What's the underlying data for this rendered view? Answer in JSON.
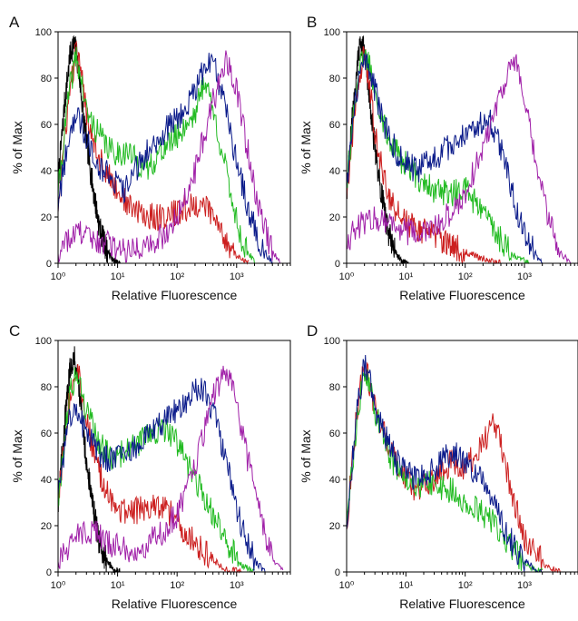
{
  "colors": {
    "black": "#000000",
    "red": "#cc1f1f",
    "green": "#22bb22",
    "blue": "#0a1a8a",
    "purple": "#a020a8"
  },
  "chart_data": [
    {
      "type": "line",
      "panel_label": "A",
      "xlabel": "Relative Fluorescence",
      "ylabel": "% of Max",
      "xscale": "log",
      "xlim": [
        1,
        8000
      ],
      "ylim": [
        0,
        100
      ],
      "x_ticks": [
        "10⁰",
        "10¹",
        "10²",
        "10³"
      ],
      "y_ticks": [
        "0",
        "20",
        "40",
        "60",
        "80",
        "100"
      ],
      "series": [
        {
          "color": "black",
          "x": [
            1,
            1.3,
            1.6,
            1.8,
            2,
            2.3,
            2.7,
            3.3,
            4,
            5,
            6.5,
            8.5,
            11
          ],
          "y": [
            35,
            70,
            90,
            95,
            92,
            80,
            62,
            45,
            30,
            15,
            6,
            1,
            0
          ]
        },
        {
          "color": "red",
          "x": [
            1,
            1.5,
            2,
            2.5,
            3,
            5,
            8,
            15,
            30,
            60,
            100,
            200,
            300,
            400,
            600,
            1000,
            1600
          ],
          "y": [
            25,
            70,
            92,
            80,
            65,
            45,
            35,
            25,
            20,
            20,
            22,
            25,
            25,
            20,
            12,
            3,
            0
          ]
        },
        {
          "color": "green",
          "x": [
            1,
            1.5,
            2,
            2.5,
            3,
            5,
            8,
            15,
            30,
            60,
            100,
            200,
            300,
            500,
            800,
            1200,
            2000
          ],
          "y": [
            30,
            72,
            90,
            78,
            65,
            55,
            48,
            48,
            40,
            50,
            55,
            65,
            80,
            55,
            30,
            10,
            0
          ]
        },
        {
          "color": "blue",
          "x": [
            1,
            1.5,
            2,
            3,
            5,
            8,
            12,
            20,
            40,
            80,
            150,
            300,
            400,
            600,
            900,
            1500,
            2500,
            4000
          ],
          "y": [
            25,
            55,
            65,
            55,
            42,
            38,
            30,
            40,
            52,
            60,
            68,
            85,
            88,
            70,
            50,
            25,
            8,
            0
          ]
        },
        {
          "color": "purple",
          "x": [
            1,
            2,
            4,
            8,
            15,
            30,
            60,
            100,
            200,
            400,
            700,
            1000,
            1500,
            2500,
            4000,
            5500
          ],
          "y": [
            5,
            14,
            10,
            8,
            6,
            8,
            12,
            20,
            40,
            70,
            88,
            75,
            50,
            20,
            5,
            0
          ]
        }
      ]
    },
    {
      "type": "line",
      "panel_label": "B",
      "xlabel": "Relative Fluorescence",
      "ylabel": "% of Max",
      "xscale": "log",
      "xlim": [
        1,
        8000
      ],
      "ylim": [
        0,
        100
      ],
      "x_ticks": [
        "10⁰",
        "10¹",
        "10²",
        "10³"
      ],
      "y_ticks": [
        "0",
        "20",
        "40",
        "60",
        "80",
        "100"
      ],
      "series": [
        {
          "color": "black",
          "x": [
            1,
            1.3,
            1.6,
            1.8,
            2,
            2.3,
            2.7,
            3.3,
            4,
            5,
            6.5,
            8.5,
            11
          ],
          "y": [
            30,
            70,
            92,
            95,
            90,
            78,
            60,
            42,
            28,
            14,
            5,
            1,
            0
          ]
        },
        {
          "color": "red",
          "x": [
            1,
            1.5,
            2,
            2.5,
            3,
            5,
            8,
            15,
            30,
            60,
            100,
            200,
            400
          ],
          "y": [
            30,
            75,
            92,
            75,
            55,
            30,
            20,
            15,
            12,
            8,
            5,
            2,
            0
          ]
        },
        {
          "color": "green",
          "x": [
            1,
            1.5,
            2,
            2.5,
            3,
            5,
            8,
            15,
            30,
            60,
            100,
            200,
            400,
            700,
            1200
          ],
          "y": [
            35,
            80,
            90,
            85,
            75,
            55,
            45,
            38,
            32,
            30,
            32,
            22,
            10,
            3,
            0
          ]
        },
        {
          "color": "blue",
          "x": [
            1,
            1.5,
            2,
            3,
            5,
            8,
            15,
            30,
            60,
            120,
            250,
            400,
            700,
            1200,
            2000
          ],
          "y": [
            35,
            75,
            90,
            75,
            55,
            45,
            40,
            45,
            52,
            58,
            62,
            50,
            25,
            8,
            0
          ]
        },
        {
          "color": "purple",
          "x": [
            1,
            2,
            4,
            8,
            15,
            30,
            60,
            100,
            200,
            400,
            700,
            1000,
            1500,
            2500,
            4000,
            6000
          ],
          "y": [
            10,
            18,
            20,
            15,
            12,
            15,
            22,
            30,
            50,
            75,
            88,
            70,
            45,
            20,
            5,
            0
          ]
        }
      ]
    },
    {
      "type": "line",
      "panel_label": "C",
      "xlabel": "Relative Fluorescence",
      "ylabel": "% of Max",
      "xscale": "log",
      "xlim": [
        1,
        8000
      ],
      "ylim": [
        0,
        100
      ],
      "x_ticks": [
        "10⁰",
        "10¹",
        "10²",
        "10³"
      ],
      "y_ticks": [
        "0",
        "20",
        "40",
        "60",
        "80",
        "100"
      ],
      "series": [
        {
          "color": "black",
          "x": [
            1,
            1.3,
            1.6,
            1.8,
            2,
            2.3,
            2.7,
            3.3,
            4,
            5,
            6.5,
            8.5,
            11
          ],
          "y": [
            30,
            65,
            88,
            93,
            90,
            78,
            58,
            40,
            26,
            12,
            5,
            1,
            0
          ]
        },
        {
          "color": "red",
          "x": [
            1,
            1.5,
            2,
            2.5,
            3,
            5,
            8,
            15,
            30,
            60,
            100,
            200,
            400,
            700,
            1200
          ],
          "y": [
            30,
            72,
            88,
            80,
            65,
            42,
            30,
            25,
            28,
            28,
            22,
            12,
            5,
            1,
            0
          ]
        },
        {
          "color": "green",
          "x": [
            1,
            1.5,
            2,
            3,
            5,
            8,
            15,
            30,
            60,
            100,
            200,
            400,
            700,
            1200,
            2000
          ],
          "y": [
            30,
            75,
            85,
            70,
            55,
            50,
            52,
            58,
            62,
            55,
            40,
            25,
            12,
            3,
            0
          ]
        },
        {
          "color": "blue",
          "x": [
            1,
            1.5,
            2,
            3,
            5,
            8,
            15,
            30,
            60,
            120,
            250,
            400,
            700,
            1200,
            2000,
            3000
          ],
          "y": [
            35,
            65,
            70,
            60,
            50,
            48,
            50,
            58,
            65,
            72,
            80,
            70,
            45,
            20,
            5,
            0
          ]
        },
        {
          "color": "purple",
          "x": [
            1,
            2,
            4,
            8,
            15,
            30,
            60,
            100,
            200,
            400,
            700,
            1000,
            1500,
            2500,
            4000,
            6000
          ],
          "y": [
            5,
            15,
            18,
            12,
            10,
            12,
            18,
            25,
            45,
            75,
            88,
            72,
            50,
            25,
            5,
            0
          ]
        }
      ]
    },
    {
      "type": "line",
      "panel_label": "D",
      "xlabel": "Relative Fluorescence",
      "ylabel": "% of Max",
      "xscale": "log",
      "xlim": [
        1,
        8000
      ],
      "ylim": [
        0,
        100
      ],
      "x_ticks": [
        "10⁰",
        "10¹",
        "10²",
        "10³"
      ],
      "y_ticks": [
        "0",
        "20",
        "40",
        "60",
        "80",
        "100"
      ],
      "series": [
        {
          "color": "red",
          "x": [
            1,
            1.5,
            2,
            2.5,
            3,
            5,
            8,
            15,
            30,
            60,
            100,
            200,
            300,
            400,
            600,
            1000,
            1500,
            2500,
            4000
          ],
          "y": [
            20,
            70,
            90,
            80,
            70,
            55,
            45,
            35,
            40,
            48,
            45,
            55,
            65,
            55,
            35,
            15,
            8,
            2,
            0
          ]
        },
        {
          "color": "green",
          "x": [
            1,
            1.5,
            2,
            2.5,
            3,
            5,
            8,
            15,
            30,
            60,
            100,
            200,
            400,
            700,
            1200,
            2000
          ],
          "y": [
            20,
            65,
            88,
            80,
            70,
            52,
            42,
            38,
            38,
            35,
            30,
            25,
            18,
            8,
            2,
            0
          ]
        },
        {
          "color": "blue",
          "x": [
            1,
            1.5,
            2,
            2.5,
            3,
            5,
            8,
            15,
            30,
            60,
            100,
            200,
            400,
            700,
            1200,
            2000
          ],
          "y": [
            20,
            70,
            90,
            82,
            72,
            55,
            45,
            40,
            45,
            52,
            48,
            38,
            22,
            10,
            3,
            0
          ]
        }
      ]
    }
  ]
}
